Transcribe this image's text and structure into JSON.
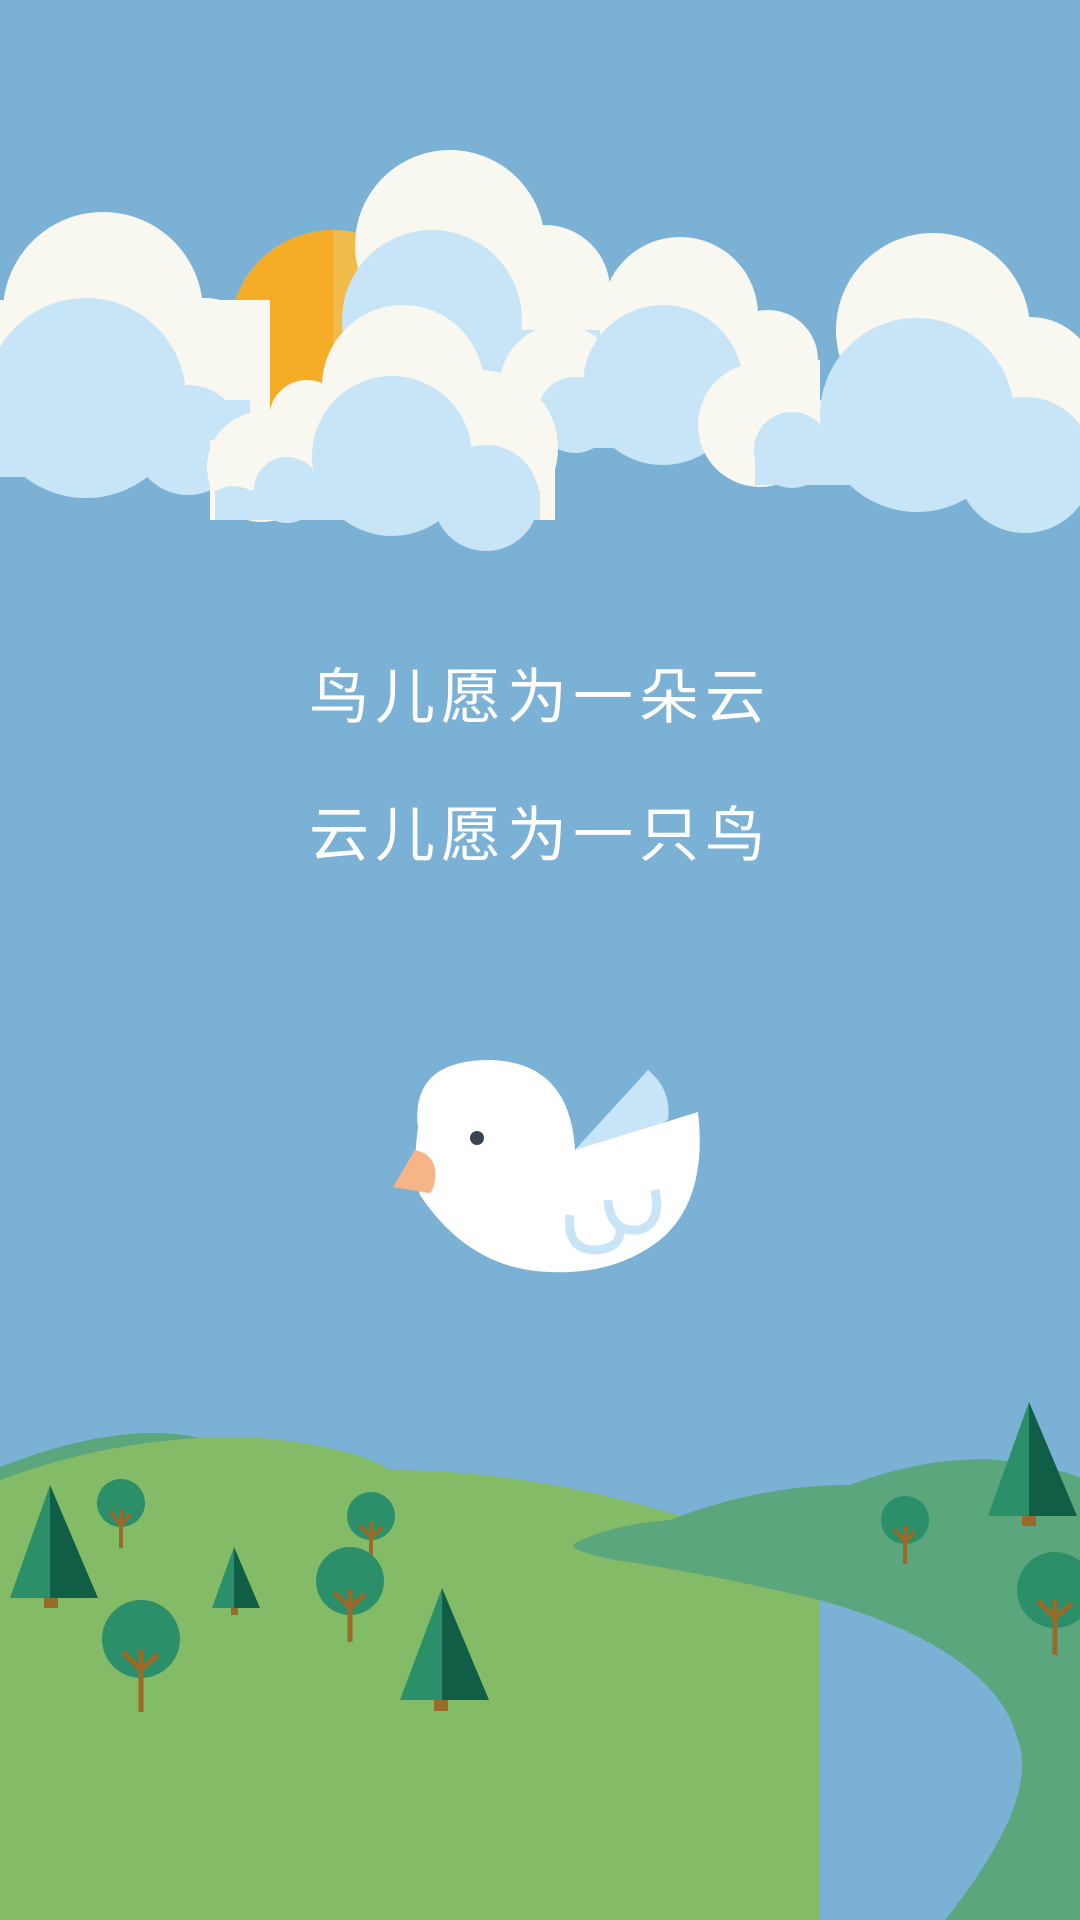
{
  "poem": {
    "line_1": "鸟儿愿为一朵云",
    "line_2": "云儿愿为一只鸟"
  },
  "palette": {
    "sky": "#7bb1d5",
    "cloud_outer": "#f8f7f0",
    "cloud_inner": "#c8e5f7",
    "sun_left": "#f5ac27",
    "sun_right": "#f0bb4b",
    "hill_light": "#84bb66",
    "hill_dark": "#5ba67c",
    "tree_light": "#2b8f6a",
    "tree_dark": "#0f5e45",
    "trunk": "#9a6a28",
    "bird_body": "#ffffff",
    "bird_beak": "#f7b487",
    "bird_eye": "#3a4451",
    "text": "#ffffff"
  },
  "icons": [
    "sun-icon",
    "cloud-icon",
    "bird-icon",
    "pine-tree-icon",
    "round-tree-icon",
    "hill-icon"
  ]
}
